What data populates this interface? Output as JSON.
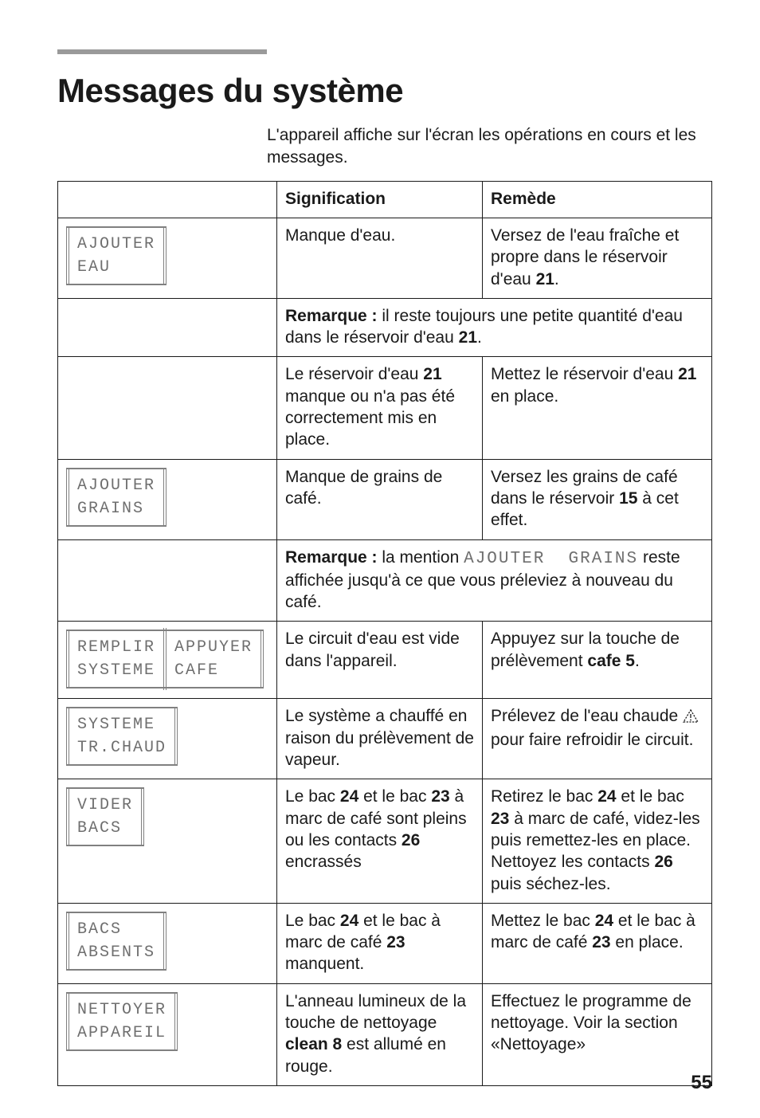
{
  "colors": {
    "text": "#1a1a1a",
    "rule": "#9a9a9a",
    "lcd_text": "#6f6f6f",
    "lcd_border": "#808080",
    "background": "#ffffff"
  },
  "typography": {
    "body_family": "Helvetica, Arial, sans-serif",
    "lcd_family": "Lucida Console, Courier New, monospace",
    "title_pt": 42,
    "body_pt": 21,
    "lcd_pt": 20,
    "page_num_pt": 24
  },
  "page_number": "55",
  "title": "Messages du système",
  "intro": "L'appareil affiche sur l'écran les opérations en cours et les messages.",
  "headers": {
    "signification": "Signification",
    "remede": "Remède"
  },
  "rows": [
    {
      "display": {
        "type": "single",
        "line1": "AJOUTER",
        "line2": "EAU"
      },
      "sig_html": "Manque d'eau.",
      "rem_html": "Versez de l'eau fraîche et propre dans le réservoir d'eau <b>21</b>."
    },
    {
      "display": null,
      "note_span": true,
      "sig_html": "<b>Remarque :</b> il reste toujours une petite quantité d'eau dans le réservoir d'eau <b>21</b>."
    },
    {
      "display": null,
      "sig_html": "Le réservoir d'eau <b>21</b> manque ou n'a pas été correctement mis en place.",
      "rem_html": "Mettez le réservoir d'eau <b>21</b> en place."
    },
    {
      "display": {
        "type": "single",
        "line1": "AJOUTER",
        "line2": "GRAINS"
      },
      "sig_html": "Manque de grains de café.",
      "rem_html": "Versez les grains de café dans le réservoir <b>15</b> à cet effet."
    },
    {
      "display": null,
      "note_span": true,
      "sig_html": "<b>Remarque :</b> la mention <span style=\"font-family:'Lucida Console','Courier New',monospace;letter-spacing:2px;color:#6f6f6f;\">AJOUTER&nbsp;&nbsp;GRAINS</span> reste affichée jusqu'à ce que vous préleviez à nouveau du café."
    },
    {
      "display": {
        "type": "split",
        "l1": "REMPLIR",
        "l2": "SYSTEME",
        "r1": "APPUYER",
        "r2": "CAFE"
      },
      "sig_html": "Le circuit d'eau est vide dans l'appareil.",
      "rem_html": "Appuyez sur la touche de prélèvement <b>cafe&nbsp;5</b>."
    },
    {
      "display": {
        "type": "single",
        "line1": "SYSTEME",
        "line2": "TR.CHAUD"
      },
      "sig_html": "Le système a chauffé en raison du prélèvement de vapeur.",
      "rem_html": "Prélevez de l'eau chaude <span class=\"warn-icon\"><svg width=\"20\" height=\"17\" viewBox=\"0 0 20 17\"><path d=\"M10 1 L19 16 L1 16 Z\" fill=\"none\" stroke=\"#1a1a1a\" stroke-width=\"1.3\" stroke-dasharray=\"2.2,1.5\"/><line x1=\"10\" y1=\"6\" x2=\"10\" y2=\"11\" stroke=\"#1a1a1a\" stroke-width=\"1.3\"/><circle cx=\"10\" cy=\"13.5\" r=\"0.9\" fill=\"#1a1a1a\"/></svg></span> pour faire refroidir le circuit."
    },
    {
      "display": {
        "type": "single",
        "line1": "VIDER",
        "line2": "BACS"
      },
      "sig_html": "Le bac <b>24</b> et le bac <b>23</b> à marc de café sont pleins ou les contacts <b>26</b> encrassés",
      "rem_html": "Retirez le bac <b>24</b> et le bac <b>23</b> à marc de café, videz-les puis remettez-les en place. Nettoyez les contacts <b>26</b> puis séchez-les."
    },
    {
      "display": {
        "type": "single",
        "line1": "BACS",
        "line2": "ABSENTS"
      },
      "sig_html": "Le bac <b>24</b> et le bac à marc de café <b>23</b> manquent.",
      "rem_html": "Mettez le bac <b>24</b> et le bac à marc de café <b>23</b> en place."
    },
    {
      "display": {
        "type": "single",
        "line1": "NETTOYER",
        "line2": "APPAREIL"
      },
      "sig_html": "L'anneau lumineux de la touche de nettoyage <b>clean&nbsp;8</b> est allumé en rouge.",
      "rem_html": "Effectuez le programme de nettoyage. Voir la section «Nettoyage»"
    }
  ]
}
